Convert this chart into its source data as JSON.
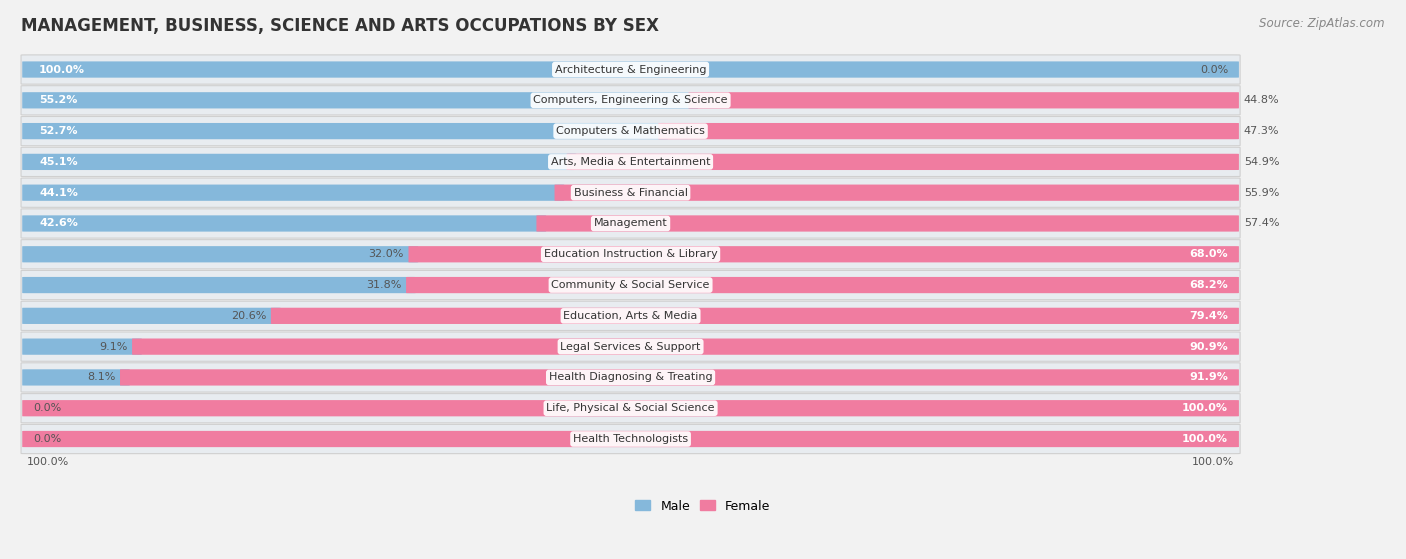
{
  "title": "MANAGEMENT, BUSINESS, SCIENCE AND ARTS OCCUPATIONS BY SEX",
  "source": "Source: ZipAtlas.com",
  "categories": [
    "Architecture & Engineering",
    "Computers, Engineering & Science",
    "Computers & Mathematics",
    "Arts, Media & Entertainment",
    "Business & Financial",
    "Management",
    "Education Instruction & Library",
    "Community & Social Service",
    "Education, Arts & Media",
    "Legal Services & Support",
    "Health Diagnosing & Treating",
    "Life, Physical & Social Science",
    "Health Technologists"
  ],
  "male": [
    100.0,
    55.2,
    52.7,
    45.1,
    44.1,
    42.6,
    32.0,
    31.8,
    20.6,
    9.1,
    8.1,
    0.0,
    0.0
  ],
  "female": [
    0.0,
    44.8,
    47.3,
    54.9,
    55.9,
    57.4,
    68.0,
    68.2,
    79.4,
    90.9,
    91.9,
    100.0,
    100.0
  ],
  "male_color": "#85b8db",
  "female_color": "#f07ca0",
  "bg_color": "#f2f2f2",
  "row_bg_even": "#e8e8e8",
  "row_bg_odd": "#f8f8f8",
  "title_fontsize": 12,
  "source_fontsize": 8.5,
  "label_fontsize": 8.0,
  "cat_fontsize": 8.0,
  "pct_fontsize": 8.0,
  "legend_male": "Male",
  "legend_female": "Female"
}
